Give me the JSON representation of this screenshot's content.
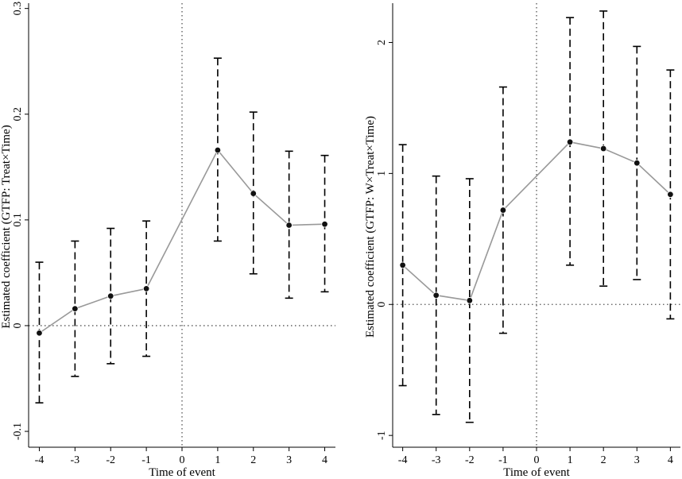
{
  "chart_data": [
    {
      "type": "scatter",
      "xlabel": "Time of event",
      "ylabel": "Estimated coefficient (GTFP: Treat×Time)",
      "x": [
        -4,
        -3,
        -2,
        -1,
        1,
        2,
        3,
        4
      ],
      "xticks": [
        -4,
        -3,
        -2,
        -1,
        0,
        1,
        2,
        3,
        4
      ],
      "xtick_labels": [
        "-4",
        "-3",
        "-2",
        "-1",
        "0",
        "1",
        "2",
        "3",
        "4"
      ],
      "yticks": [
        -0.1,
        0,
        0.1,
        0.2,
        0.3
      ],
      "ytick_labels": [
        "-0.1",
        "0",
        "0.1",
        "0.2",
        "0.3"
      ],
      "xlim": [
        -4.3,
        4.3
      ],
      "ylim": [
        -0.115,
        0.305
      ],
      "reference_lines": {
        "x": 0,
        "y": 0
      },
      "series": [
        {
          "estimate": [
            -0.007,
            0.016,
            0.028,
            0.035,
            0.166,
            0.125,
            0.095,
            0.096
          ],
          "ci_low": [
            -0.073,
            -0.048,
            -0.036,
            -0.029,
            0.08,
            0.049,
            0.026,
            0.032
          ],
          "ci_high": [
            0.06,
            0.08,
            0.092,
            0.099,
            0.253,
            0.202,
            0.165,
            0.161
          ]
        }
      ]
    },
    {
      "type": "scatter",
      "xlabel": "Time of event",
      "ylabel": "Estimated coefficient (GTFP: W×Treat×Time)",
      "x": [
        -4,
        -3,
        -2,
        -1,
        1,
        2,
        3,
        4
      ],
      "xticks": [
        -4,
        -3,
        -2,
        -1,
        0,
        1,
        2,
        3,
        4
      ],
      "xtick_labels": [
        "-4",
        "-3",
        "-2",
        "-1",
        "0",
        "1",
        "2",
        "3",
        "4"
      ],
      "yticks": [
        -1,
        0,
        1,
        2
      ],
      "ytick_labels": [
        "-1",
        "0",
        "1",
        "2"
      ],
      "xlim": [
        -4.3,
        4.3
      ],
      "ylim": [
        -1.09,
        2.3
      ],
      "reference_lines": {
        "x": 0,
        "y": 0
      },
      "series": [
        {
          "estimate": [
            0.3,
            0.07,
            0.03,
            0.72,
            1.24,
            1.19,
            1.08,
            0.84
          ],
          "ci_low": [
            -0.62,
            -0.84,
            -0.9,
            -0.22,
            0.3,
            0.14,
            0.19,
            -0.11
          ],
          "ci_high": [
            1.22,
            0.98,
            0.96,
            1.66,
            2.19,
            2.24,
            1.97,
            1.79
          ]
        }
      ]
    }
  ]
}
